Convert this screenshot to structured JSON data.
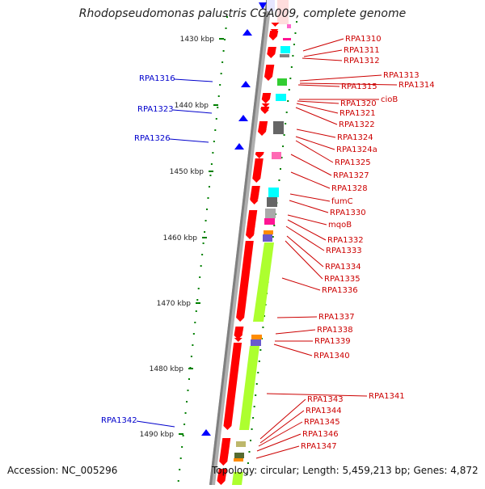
{
  "title": "Rhodopseudomonas palustris CGA009, complete genome",
  "footer": {
    "accession": "Accession: NC_005296",
    "summary": "Topology: circular; Length: 5,459,213 bp; Genes: 4,872"
  },
  "colors": {
    "forward_gene": "#ff0000",
    "reverse_gene": "#ff0000",
    "rna_marker": "#0000ff",
    "label_red": "#cc0000",
    "label_blue": "#0000cc",
    "scale_dots": "#008000",
    "backbone": "#808080",
    "cog_lime": "#adff2f"
  },
  "scale_ticks": [
    "1430 kbp",
    "1440 kbp",
    "1450 kbp",
    "1460 kbp",
    "1470 kbp",
    "1480 kbp",
    "1490 kbp"
  ],
  "left_labels": [
    "RPA1316",
    "RPA1323",
    "RPA1326",
    "RPA1342"
  ],
  "right_labels": [
    "RPA1310",
    "RPA1311",
    "RPA1312",
    "RPA1313",
    "RPA1314",
    "RPA1315",
    "cioB",
    "RPA1320",
    "RPA1321",
    "RPA1322",
    "RPA1324",
    "RPA1324a",
    "RPA1325",
    "RPA1327",
    "RPA1328",
    "fumC",
    "RPA1330",
    "mqoB",
    "RPA1332",
    "RPA1333",
    "RPA1334",
    "RPA1335",
    "RPA1336",
    "RPA1337",
    "RPA1338",
    "RPA1339",
    "RPA1340",
    "RPA1341",
    "RPA1343",
    "RPA1344",
    "RPA1345",
    "RPA1346",
    "RPA1347"
  ]
}
